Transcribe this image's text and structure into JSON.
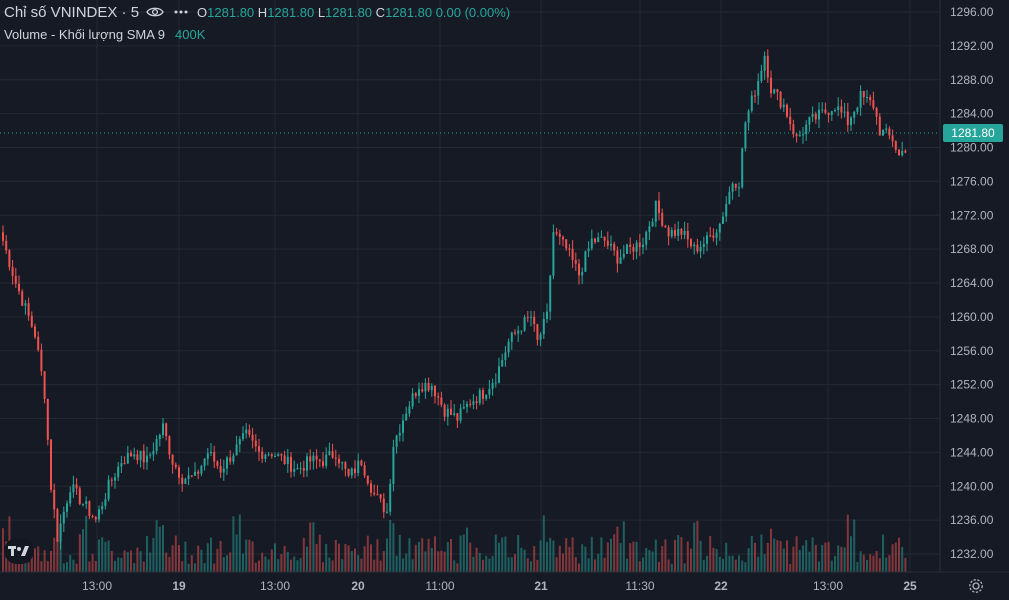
{
  "header": {
    "symbol": "Chỉ số VNINDEX · 5",
    "o_label": "O",
    "o_value": "1281.80",
    "h_label": "H",
    "h_value": "1281.80",
    "l_label": "L",
    "l_value": "1281.80",
    "c_label": "C",
    "c_value": "1281.80",
    "change": "0.00 (0.00%)",
    "icons": [
      "eye-icon",
      "more-icon"
    ]
  },
  "volume": {
    "label": "Volume - Khối lượng SMA 9",
    "value": "400K"
  },
  "last_price_label": "1281.80",
  "colors": {
    "up": "#26a69a",
    "down": "#ef5350",
    "background": "#161a25",
    "grid": "#242833",
    "last_line": "#26a69a"
  },
  "chart_data": {
    "type": "candlestick",
    "y_ticks": [
      "1232.00",
      "1236.00",
      "1240.00",
      "1244.00",
      "1248.00",
      "1252.00",
      "1256.00",
      "1260.00",
      "1264.00",
      "1268.00",
      "1272.00",
      "1276.00",
      "1280.00",
      "1284.00",
      "1288.00",
      "1292.00",
      "1296.00"
    ],
    "ylim": [
      1230,
      1297
    ],
    "x_ticks": [
      "13:00",
      "19",
      "13:00",
      "20",
      "11:00",
      "21",
      "11:30",
      "22",
      "13:00",
      "25"
    ],
    "last_price": 1281.8,
    "close_anchors": [
      [
        0,
        1269
      ],
      [
        4,
        1264
      ],
      [
        10,
        1258
      ],
      [
        13,
        1251
      ],
      [
        15,
        1240
      ],
      [
        17,
        1234
      ],
      [
        21,
        1240
      ],
      [
        25,
        1238
      ],
      [
        29,
        1236
      ],
      [
        33,
        1240
      ],
      [
        37,
        1243
      ],
      [
        41,
        1244
      ],
      [
        45,
        1243
      ],
      [
        50,
        1247
      ],
      [
        53,
        1243
      ],
      [
        56,
        1241
      ],
      [
        60,
        1241
      ],
      [
        64,
        1244
      ],
      [
        68,
        1242
      ],
      [
        72,
        1244
      ],
      [
        76,
        1246
      ],
      [
        80,
        1244
      ],
      [
        84,
        1244
      ],
      [
        88,
        1243
      ],
      [
        92,
        1242
      ],
      [
        96,
        1243
      ],
      [
        100,
        1243
      ],
      [
        104,
        1244
      ],
      [
        108,
        1241
      ],
      [
        112,
        1243
      ],
      [
        116,
        1239
      ],
      [
        120,
        1237
      ],
      [
        122,
        1245
      ],
      [
        126,
        1249
      ],
      [
        130,
        1252
      ],
      [
        134,
        1252
      ],
      [
        138,
        1249
      ],
      [
        142,
        1248
      ],
      [
        146,
        1250
      ],
      [
        150,
        1251
      ],
      [
        154,
        1253
      ],
      [
        158,
        1257
      ],
      [
        162,
        1259
      ],
      [
        165,
        1260
      ],
      [
        167,
        1257
      ],
      [
        170,
        1260
      ],
      [
        172,
        1270
      ],
      [
        176,
        1268
      ],
      [
        180,
        1265
      ],
      [
        184,
        1269
      ],
      [
        188,
        1269
      ],
      [
        192,
        1267
      ],
      [
        196,
        1268
      ],
      [
        200,
        1269
      ],
      [
        204,
        1273
      ],
      [
        208,
        1270
      ],
      [
        212,
        1270
      ],
      [
        216,
        1268
      ],
      [
        220,
        1269
      ],
      [
        224,
        1271
      ],
      [
        228,
        1276
      ],
      [
        230,
        1276
      ],
      [
        232,
        1283
      ],
      [
        236,
        1288
      ],
      [
        238,
        1291
      ],
      [
        240,
        1287
      ],
      [
        244,
        1285
      ],
      [
        248,
        1281
      ],
      [
        252,
        1283
      ],
      [
        256,
        1284
      ],
      [
        260,
        1285
      ],
      [
        264,
        1283
      ],
      [
        268,
        1286
      ],
      [
        272,
        1285
      ],
      [
        274,
        1282
      ],
      [
        278,
        1281
      ],
      [
        280,
        1279
      ],
      [
        284,
        1281
      ]
    ]
  }
}
